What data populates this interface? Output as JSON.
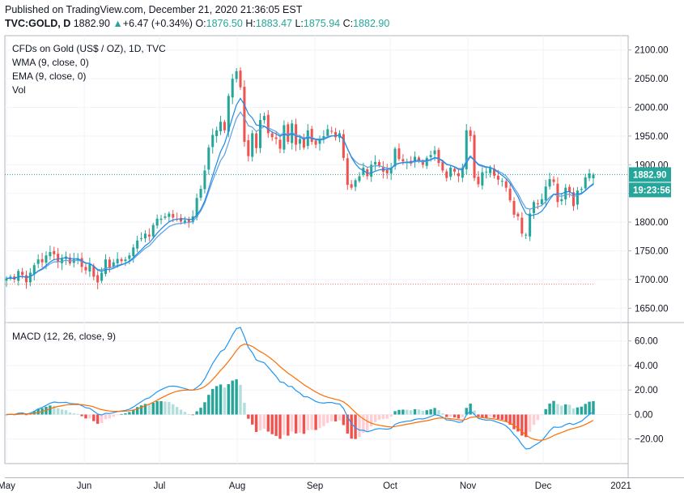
{
  "header": {
    "published": "Published on TradingView.com, December 21, 2020 21:36:05 EST",
    "symbol": "TVC:GOLD, D",
    "last": "1882.90",
    "change_arrow": "▲",
    "change": "+6.47 (+0.34%)",
    "o_label": "O:",
    "o": "1876.50",
    "h_label": "H:",
    "h": "1883.47",
    "l_label": "L:",
    "l": "1875.94",
    "c_label": "C:",
    "c": "1882.90"
  },
  "legend": {
    "title": "CFDs on Gold (US$ / OZ), 1D, TVC",
    "wma": "WMA (9, close, 0)",
    "ema": "EMA (9, close, 0)",
    "vol": "Vol",
    "macd": "MACD (12, 26, close, 9)"
  },
  "badges": {
    "price": "1882.90",
    "countdown": "19:23:56"
  },
  "colors": {
    "up": "#26a69a",
    "down": "#ef5350",
    "wma": "#1e88e5",
    "ema": "#5aa0e0",
    "macd": "#2196f3",
    "signal": "#ff6d00",
    "hist_up_strong": "#26a69a",
    "hist_up_weak": "#b2dfdb",
    "hist_down_strong": "#ef5350",
    "hist_down_weak": "#ffcdd2",
    "badge_price": "#26a69a",
    "badge_time": "#26a69a"
  },
  "chart_data": [
    {
      "type": "candlestick",
      "title": "CFDs on Gold (US$ / OZ), 1D, TVC",
      "ylim": [
        1625,
        2125
      ],
      "yticks": [
        "1650.00",
        "1700.00",
        "1750.00",
        "1800.00",
        "1850.00",
        "1900.00",
        "1950.00",
        "2000.00",
        "2050.00",
        "2100.00"
      ],
      "ytick_values": [
        1650,
        1700,
        1750,
        1800,
        1850,
        1900,
        1950,
        2000,
        2050,
        2100
      ],
      "last_price": 1882.9,
      "reference_level": 1692,
      "xlabels": [
        "May",
        "Jun",
        "Jul",
        "Aug",
        "Sep",
        "Oct",
        "Nov",
        "Dec",
        "2021"
      ],
      "xlabel_dates": [
        "2020-05-01",
        "2020-06-01",
        "2020-07-01",
        "2020-08-01",
        "2020-09-01",
        "2020-10-01",
        "2020-11-01",
        "2020-12-01",
        "2021-01-01"
      ],
      "close": [
        1702,
        1705,
        1700,
        1715,
        1708,
        1695,
        1712,
        1725,
        1735,
        1730,
        1742,
        1748,
        1744,
        1731,
        1736,
        1740,
        1728,
        1735,
        1737,
        1722,
        1716,
        1727,
        1705,
        1695,
        1712,
        1735,
        1720,
        1730,
        1736,
        1732,
        1735,
        1742,
        1756,
        1768,
        1772,
        1780,
        1775,
        1795,
        1806,
        1806,
        1810,
        1815,
        1808,
        1805,
        1801,
        1803,
        1800,
        1810,
        1842,
        1858,
        1890,
        1930,
        1952,
        1960,
        1975,
        1960,
        2020,
        2050,
        2063,
        2035,
        1940,
        1915,
        1955,
        1929,
        1978,
        1985,
        1955,
        1948,
        1945,
        1928,
        1969,
        1940,
        1972,
        1935,
        1945,
        1930,
        1960,
        1940,
        1935,
        1945,
        1950,
        1962,
        1958,
        1948,
        1955,
        1912,
        1865,
        1860,
        1873,
        1880,
        1895,
        1880,
        1900,
        1905,
        1898,
        1888,
        1885,
        1895,
        1928,
        1910,
        1906,
        1905,
        1902,
        1914,
        1908,
        1900,
        1912,
        1917,
        1925,
        1903,
        1890,
        1877,
        1895,
        1888,
        1880,
        1895,
        1960,
        1950,
        1877,
        1866,
        1887,
        1888,
        1895,
        1881,
        1874,
        1872,
        1860,
        1838,
        1813,
        1810,
        1780,
        1778,
        1815,
        1835,
        1832,
        1840,
        1862,
        1875,
        1870,
        1835,
        1840,
        1860,
        1853,
        1828,
        1855,
        1858,
        1878,
        1885,
        1882.9
      ],
      "series": [
        {
          "name": "WMA (9, close, 0)"
        },
        {
          "name": "EMA (9, close, 0)"
        }
      ]
    },
    {
      "type": "macd",
      "title": "MACD (12, 26, close, 9)",
      "ylim": [
        -40,
        75
      ],
      "yticks": [
        "−20.00",
        "0.00",
        "20.00",
        "40.00",
        "60.00"
      ],
      "ytick_values": [
        -20,
        0,
        20,
        40,
        60
      ],
      "series": [
        {
          "name": "MACD"
        },
        {
          "name": "Signal"
        },
        {
          "name": "Histogram"
        }
      ]
    }
  ]
}
